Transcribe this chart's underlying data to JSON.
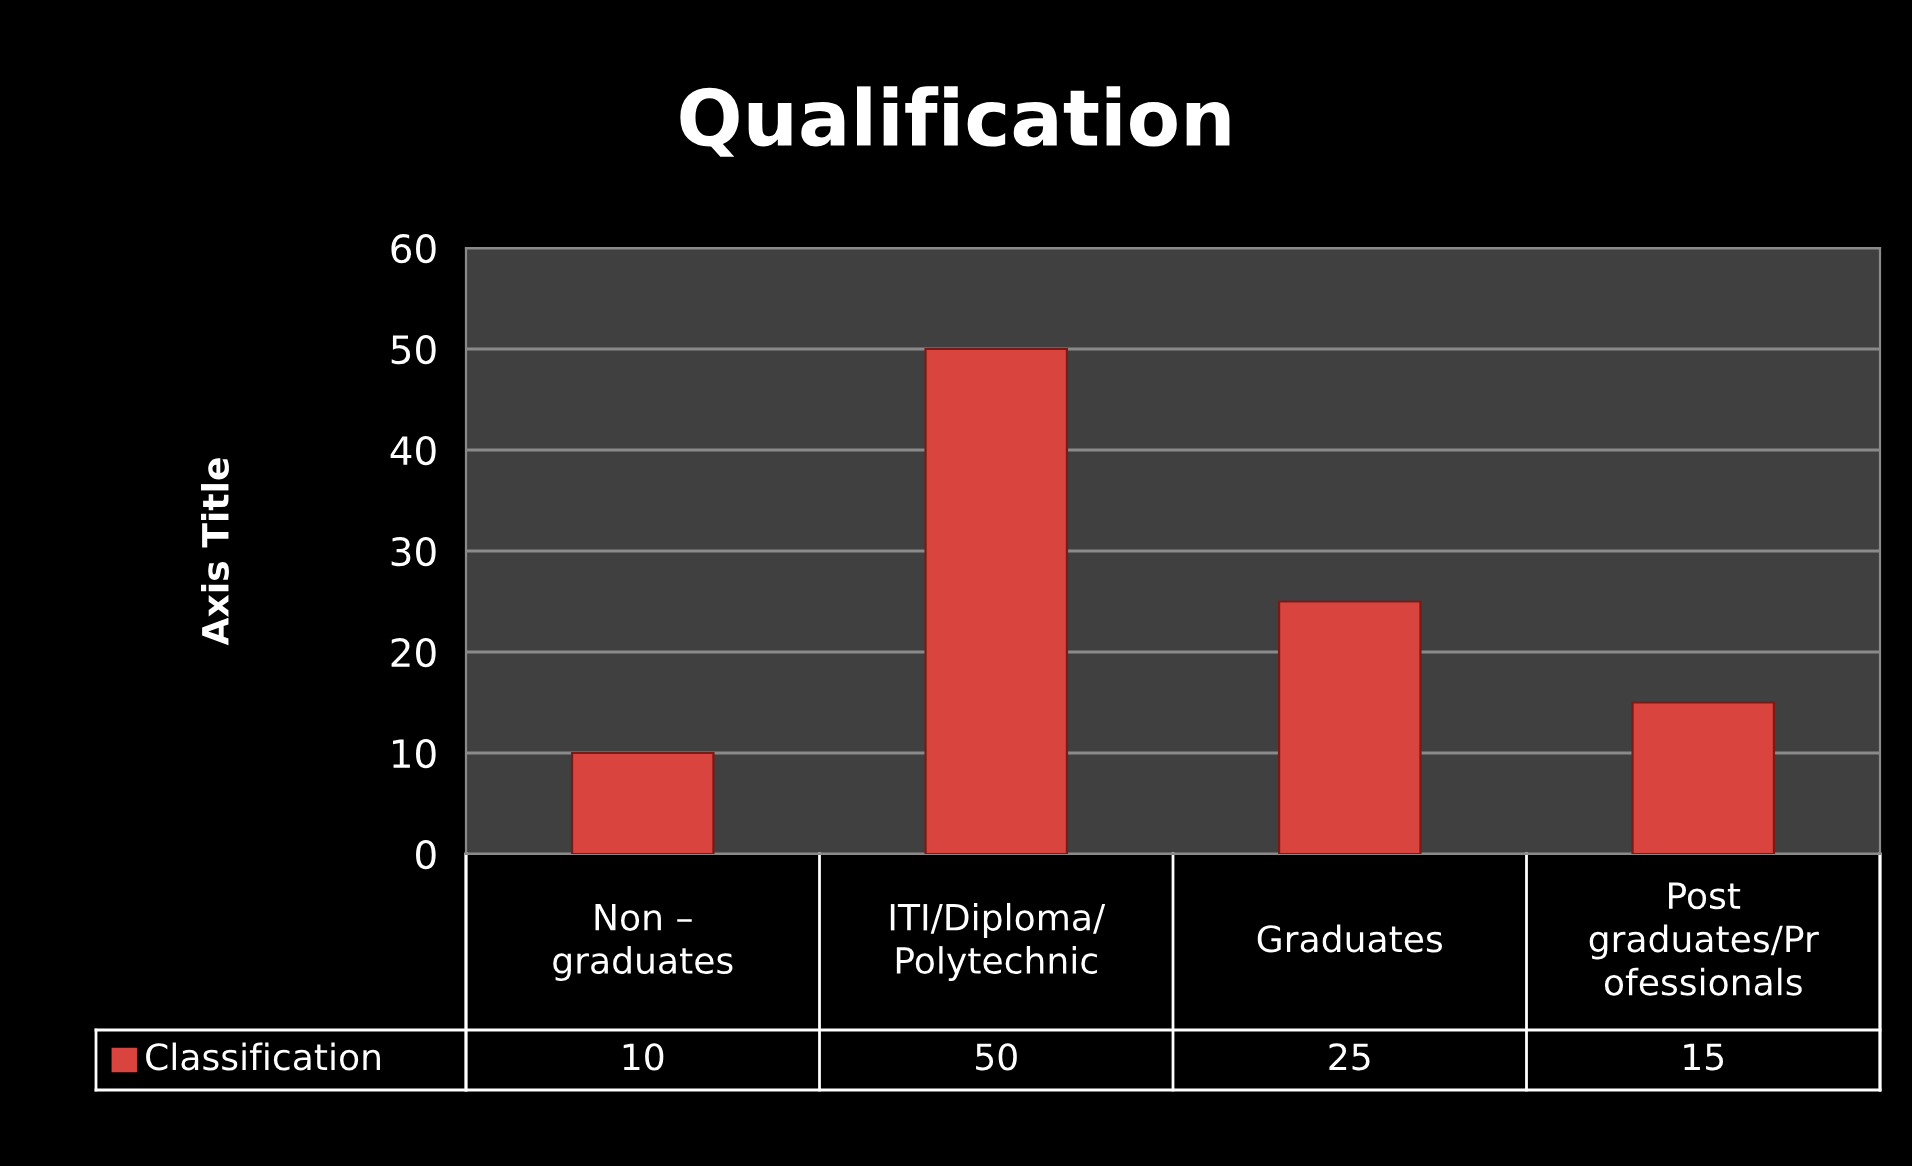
{
  "chart_data": {
    "type": "bar",
    "title": "Qualification",
    "ylabel": "Axis Title",
    "categories": [
      "Non –\ngraduates",
      "ITI/Diploma/\nPolytechnic",
      "Graduates",
      "Post\ngraduates/Pr\nofessionals"
    ],
    "series": [
      {
        "name": "Classification",
        "color": "#d9443e",
        "values": [
          10,
          50,
          25,
          15
        ]
      }
    ],
    "ylim": [
      0,
      60
    ],
    "yticks": [
      0,
      10,
      20,
      30,
      40,
      50,
      60
    ],
    "grid": "y",
    "data_labels": true,
    "legend": "bottom"
  }
}
